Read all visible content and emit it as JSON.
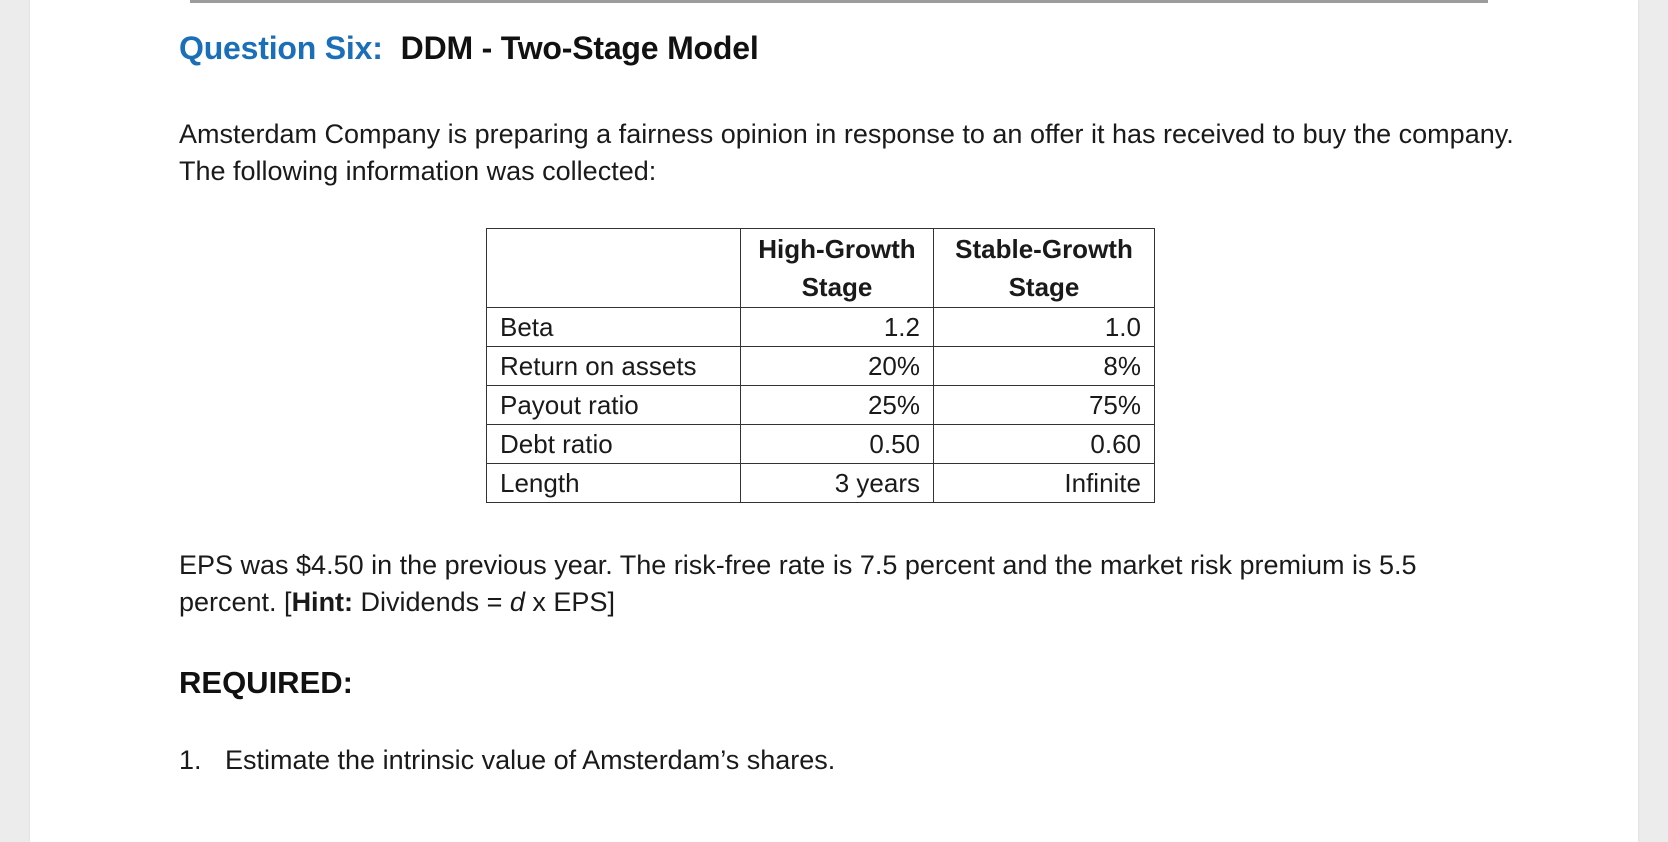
{
  "heading": {
    "question": "Question Six:",
    "title": "DDM - Two-Stage Model"
  },
  "intro": "Amsterdam Company is preparing a fairness opinion in response to an offer it has received to buy the company.  The following information was collected:",
  "table": {
    "headers": [
      "",
      "High-Growth Stage",
      "Stable-Growth Stage"
    ],
    "rows": [
      [
        "Beta",
        "1.2",
        "1.0"
      ],
      [
        "Return on assets",
        "20%",
        "8%"
      ],
      [
        "Payout ratio",
        "25%",
        "75%"
      ],
      [
        "Debt ratio",
        "0.50",
        "0.60"
      ],
      [
        "Length",
        "3 years",
        "Infinite"
      ]
    ]
  },
  "eps_paragraph": {
    "text": "EPS was $4.50 in the previous year.  The risk-free rate is 7.5 percent and the market risk premium is 5.5 percent. [",
    "hint_label": "Hint:",
    "hint_before": " Dividends = ",
    "hint_var": "d",
    "hint_after": " x EPS]"
  },
  "required_label": "REQUIRED:",
  "questions": [
    {
      "number": "1.",
      "text": "Estimate the intrinsic value of Amsterdam’s shares."
    }
  ],
  "colors": {
    "question_blue": "#1b6fb8",
    "text": "#1a1a1a"
  }
}
